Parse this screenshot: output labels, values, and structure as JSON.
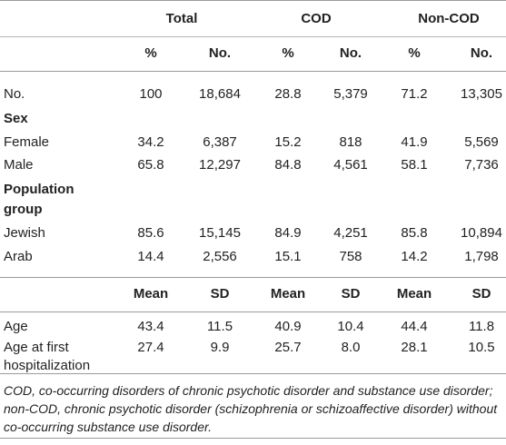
{
  "table": {
    "groups": [
      "Total",
      "COD",
      "Non-COD"
    ],
    "pct_no_headers": [
      "%",
      "No.",
      "%",
      "No.",
      "%",
      "No."
    ],
    "rows": [
      {
        "label": "No.",
        "values": [
          "100",
          "18,684",
          "28.8",
          "5,379",
          "71.2",
          "13,305"
        ]
      },
      {
        "label": "Sex",
        "bold": true
      },
      {
        "label": "Female",
        "values": [
          "34.2",
          "6,387",
          "15.2",
          "818",
          "41.9",
          "5,569"
        ]
      },
      {
        "label": "Male",
        "values": [
          "65.8",
          "12,297",
          "84.8",
          "4,561",
          "58.1",
          "7,736"
        ]
      },
      {
        "label_lines": [
          "Population",
          "group"
        ],
        "bold": true
      },
      {
        "label": "Jewish",
        "values": [
          "85.6",
          "15,145",
          "84.9",
          "4,251",
          "85.8",
          "10,894"
        ]
      },
      {
        "label": "Arab",
        "values": [
          "14.4",
          "2,556",
          "15.1",
          "758",
          "14.2",
          "1,798"
        ]
      }
    ],
    "mean_sd_headers": [
      "Mean",
      "SD",
      "Mean",
      "SD",
      "Mean",
      "SD"
    ],
    "mean_rows": [
      {
        "label": "Age",
        "values": [
          "43.4",
          "11.5",
          "40.9",
          "10.4",
          "44.4",
          "11.8"
        ]
      },
      {
        "label_lines": [
          "Age at first",
          "hospitalization"
        ],
        "values": [
          "27.4",
          "9.9",
          "25.7",
          "8.0",
          "28.1",
          "10.5"
        ]
      }
    ]
  },
  "footnote": "COD, co-occurring disorders of chronic psychotic disorder and substance use disorder; non-COD, chronic psychotic disorder (schizophrenia or schizoaffective disorder) without co-occurring substance use disorder."
}
